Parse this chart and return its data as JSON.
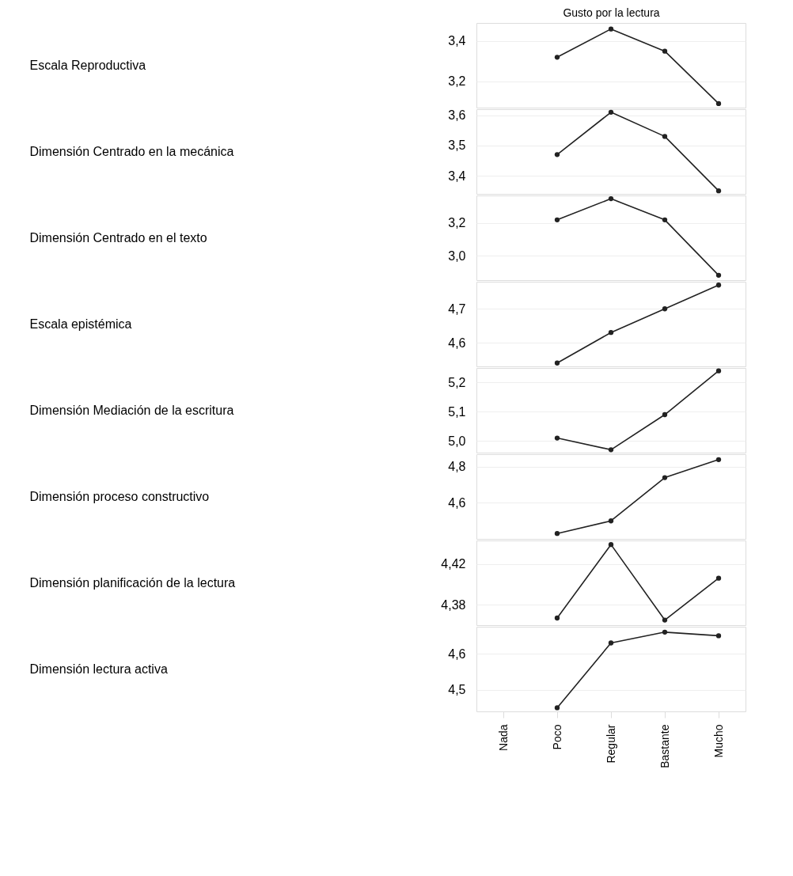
{
  "chart_data": [
    {
      "type": "line",
      "xlabel": "Gusto por la lectura",
      "ylabel": "Escala Reproductiva",
      "series": [
        {
          "color": "#222222",
          "values": [
            null,
            3.32,
            3.46,
            3.35,
            3.09
          ]
        }
      ],
      "ylim": [
        3.07,
        3.49
      ],
      "yticks": [
        {
          "value": 3.2,
          "label": "3,2"
        },
        {
          "value": 3.4,
          "label": "3,4"
        }
      ],
      "grid": "y",
      "marker": "circle",
      "line_style": "solid",
      "tick_labels": "y"
    },
    {
      "type": "line",
      "ylabel": "Dimensión Centrado en la mecánica",
      "series": [
        {
          "color": "#222222",
          "values": [
            null,
            3.47,
            3.61,
            3.53,
            3.35
          ]
        }
      ],
      "ylim": [
        3.34,
        3.62
      ],
      "yticks": [
        {
          "value": 3.4,
          "label": "3,4"
        },
        {
          "value": 3.5,
          "label": "3,5"
        },
        {
          "value": 3.6,
          "label": "3,6"
        }
      ],
      "grid": "y",
      "marker": "circle",
      "line_style": "solid",
      "tick_labels": "y"
    },
    {
      "type": "line",
      "ylabel": "Dimensión Centrado en el texto",
      "series": [
        {
          "color": "#222222",
          "values": [
            null,
            3.22,
            3.35,
            3.22,
            2.88
          ]
        }
      ],
      "ylim": [
        2.85,
        3.37
      ],
      "yticks": [
        {
          "value": 3.0,
          "label": "3,0"
        },
        {
          "value": 3.2,
          "label": "3,2"
        }
      ],
      "grid": "y",
      "marker": "circle",
      "line_style": "solid",
      "tick_labels": "y"
    },
    {
      "type": "line",
      "ylabel": "Escala epistémica",
      "series": [
        {
          "color": "#222222",
          "values": [
            null,
            4.54,
            4.63,
            4.7,
            4.77
          ]
        }
      ],
      "ylim": [
        4.53,
        4.78
      ],
      "yticks": [
        {
          "value": 4.6,
          "label": "4,6"
        },
        {
          "value": 4.7,
          "label": "4,7"
        }
      ],
      "grid": "y",
      "marker": "circle",
      "line_style": "solid",
      "tick_labels": "y"
    },
    {
      "type": "line",
      "ylabel": "Dimensión Mediación de la escritura",
      "series": [
        {
          "color": "#222222",
          "values": [
            null,
            5.01,
            4.97,
            5.09,
            5.24
          ]
        }
      ],
      "ylim": [
        4.96,
        5.25
      ],
      "yticks": [
        {
          "value": 5.0,
          "label": "5,0"
        },
        {
          "value": 5.1,
          "label": "5,1"
        },
        {
          "value": 5.2,
          "label": "5,2"
        }
      ],
      "grid": "y",
      "marker": "circle",
      "line_style": "solid",
      "tick_labels": "y"
    },
    {
      "type": "line",
      "ylabel": "Dimensión proceso constructivo",
      "series": [
        {
          "color": "#222222",
          "values": [
            null,
            4.43,
            4.5,
            4.74,
            4.84
          ]
        }
      ],
      "ylim": [
        4.4,
        4.87
      ],
      "yticks": [
        {
          "value": 4.6,
          "label": "4,6"
        },
        {
          "value": 4.8,
          "label": "4,8"
        }
      ],
      "grid": "y",
      "marker": "circle",
      "line_style": "solid",
      "tick_labels": "y"
    },
    {
      "type": "line",
      "ylabel": "Dimensión planificación de la lectura",
      "series": [
        {
          "color": "#222222",
          "values": [
            null,
            4.367,
            4.439,
            4.365,
            4.406
          ]
        }
      ],
      "ylim": [
        4.36,
        4.443
      ],
      "yticks": [
        {
          "value": 4.38,
          "label": "4,38"
        },
        {
          "value": 4.42,
          "label": "4,42"
        }
      ],
      "grid": "y",
      "marker": "circle",
      "line_style": "solid",
      "tick_labels": "y"
    },
    {
      "type": "line",
      "ylabel": "Dimensión lectura activa",
      "categories": [
        "Nada",
        "Poco",
        "Regular",
        "Bastante",
        "Mucho"
      ],
      "series": [
        {
          "color": "#222222",
          "values": [
            null,
            4.45,
            4.63,
            4.66,
            4.65
          ]
        }
      ],
      "ylim": [
        4.44,
        4.675
      ],
      "yticks": [
        {
          "value": 4.5,
          "label": "4,5"
        },
        {
          "value": 4.6,
          "label": "4,6"
        }
      ],
      "grid": "y",
      "marker": "circle",
      "line_style": "solid"
    }
  ]
}
